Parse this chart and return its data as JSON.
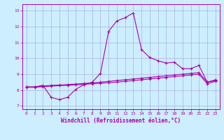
{
  "xlabel": "Windchill (Refroidissement éolien,°C)",
  "bg_color": "#cceeff",
  "line_color": "#aa00aa",
  "grid_color": "#aaaadd",
  "xlim": [
    -0.5,
    23.5
  ],
  "ylim": [
    6.8,
    13.4
  ],
  "xticks": [
    0,
    1,
    2,
    3,
    4,
    5,
    6,
    7,
    8,
    9,
    10,
    11,
    12,
    13,
    14,
    15,
    16,
    17,
    18,
    19,
    20,
    21,
    22,
    23
  ],
  "yticks": [
    7,
    8,
    9,
    10,
    11,
    12,
    13
  ],
  "series1_x": [
    0,
    1,
    2,
    3,
    4,
    5,
    6,
    7,
    8,
    9,
    10,
    11,
    12,
    13,
    14,
    15,
    16,
    17,
    18,
    19,
    20,
    21,
    22,
    23
  ],
  "series1_y": [
    8.2,
    8.2,
    8.3,
    7.55,
    7.4,
    7.55,
    8.05,
    8.35,
    8.5,
    9.05,
    11.7,
    12.35,
    12.55,
    12.85,
    10.55,
    10.05,
    9.85,
    9.7,
    9.75,
    9.35,
    9.35,
    9.55,
    8.5,
    8.65
  ],
  "series2_x": [
    0,
    1,
    2,
    3,
    4,
    5,
    6,
    7,
    8,
    9,
    10,
    11,
    12,
    13,
    14,
    15,
    16,
    17,
    18,
    19,
    20,
    21,
    22,
    23
  ],
  "series2_y": [
    8.2,
    8.2,
    8.25,
    8.3,
    8.32,
    8.35,
    8.38,
    8.42,
    8.45,
    8.5,
    8.55,
    8.6,
    8.65,
    8.7,
    8.75,
    8.8,
    8.85,
    8.9,
    8.95,
    9.0,
    9.05,
    9.1,
    8.5,
    8.6
  ],
  "series3_x": [
    0,
    1,
    2,
    3,
    4,
    5,
    6,
    7,
    8,
    9,
    10,
    11,
    12,
    13,
    14,
    15,
    16,
    17,
    18,
    19,
    20,
    21,
    22,
    23
  ],
  "series3_y": [
    8.18,
    8.18,
    8.22,
    8.25,
    8.28,
    8.3,
    8.33,
    8.36,
    8.4,
    8.43,
    8.47,
    8.5,
    8.55,
    8.6,
    8.65,
    8.7,
    8.75,
    8.8,
    8.85,
    8.9,
    8.95,
    9.0,
    8.4,
    8.55
  ]
}
